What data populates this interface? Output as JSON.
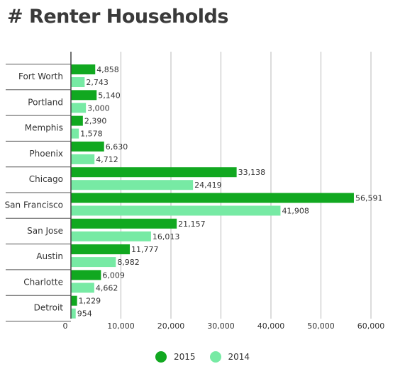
{
  "title": "# Renter Households",
  "chart_data": {
    "type": "bar",
    "orientation": "horizontal",
    "categories": [
      "Fort Worth",
      "Portland",
      "Memphis",
      "Phoenix",
      "Chicago",
      "San Francisco",
      "San Jose",
      "Austin",
      "Charlotte",
      "Detroit"
    ],
    "series": [
      {
        "name": "2015",
        "color": "#11a820",
        "values": [
          4858,
          5140,
          2390,
          6630,
          33138,
          56591,
          21157,
          11777,
          6009,
          1229
        ],
        "labels": [
          "4,858",
          "5,140",
          "2,390",
          "6,630",
          "33,138",
          "56,591",
          "21,157",
          "11,777",
          "6,009",
          "1,229"
        ]
      },
      {
        "name": "2014",
        "color": "#77eaa4",
        "values": [
          2743,
          3000,
          1578,
          4712,
          24419,
          41908,
          16013,
          8982,
          4662,
          954
        ],
        "labels": [
          "2,743",
          "3,000",
          "1,578",
          "4,712",
          "24,419",
          "41,908",
          "16,013",
          "8,982",
          "4,662",
          "954"
        ]
      }
    ],
    "xlim": [
      0,
      60000
    ],
    "xticks": [
      0,
      10000,
      20000,
      30000,
      40000,
      50000,
      60000
    ],
    "xtick_labels": [
      "0",
      "10,000",
      "20,000",
      "30,000",
      "40,000",
      "50,000",
      "60,000"
    ],
    "grid": true,
    "legend_position": "bottom-center"
  }
}
